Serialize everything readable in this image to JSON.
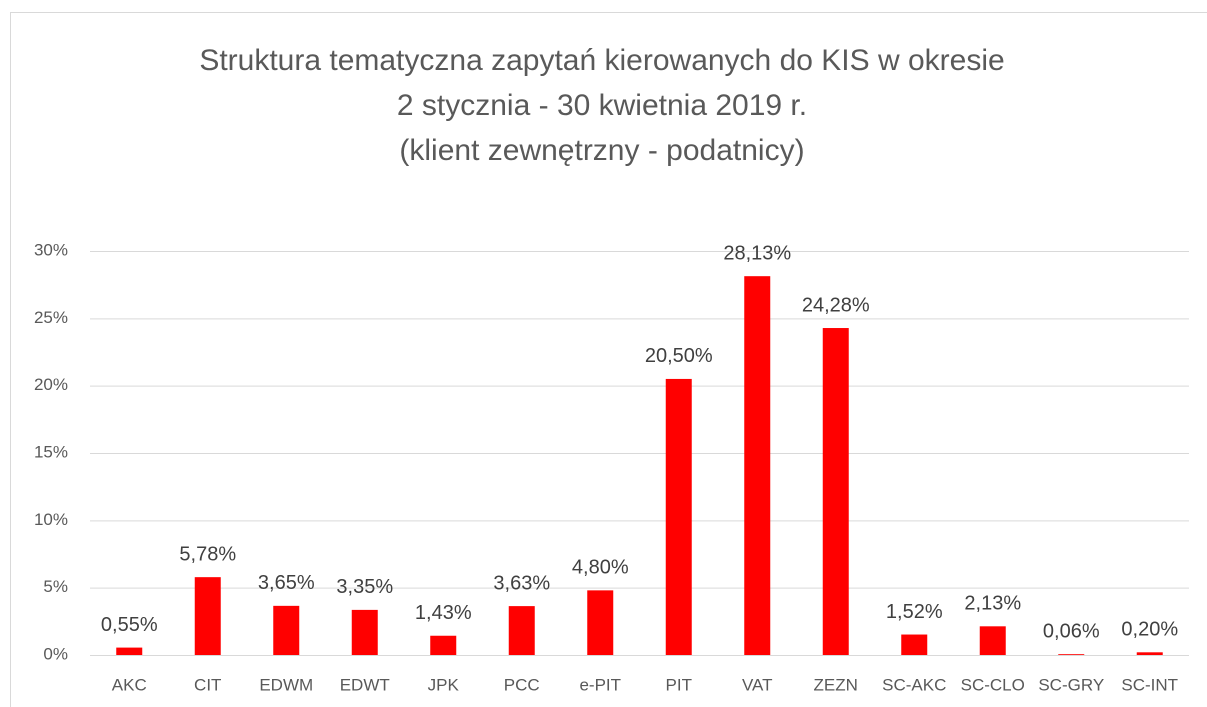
{
  "chart_data": {
    "type": "bar",
    "title": [
      "Struktura tematyczna zapytań kierowanych do KIS w okresie",
      "2 stycznia  - 30 kwietnia 2019 r.",
      "(klient zewnętrzny - podatnicy)"
    ],
    "categories": [
      "AKC",
      "CIT",
      "EDWM",
      "EDWT",
      "JPK",
      "PCC",
      "e-PIT",
      "PIT",
      "VAT",
      "ZEZN",
      "SC-AKC",
      "SC-CLO",
      "SC-GRY",
      "SC-INT"
    ],
    "values": [
      0.55,
      5.78,
      3.65,
      3.35,
      1.43,
      3.63,
      4.8,
      20.5,
      28.13,
      24.28,
      1.52,
      2.13,
      0.06,
      0.2
    ],
    "value_labels": [
      "0,55%",
      "5,78%",
      "3,65%",
      "3,35%",
      "1,43%",
      "3,63%",
      "4,80%",
      "20,50%",
      "28,13%",
      "24,28%",
      "1,52%",
      "2,13%",
      "0,06%",
      "0,20%"
    ],
    "color": "#ff0000",
    "ylim": [
      0,
      30
    ],
    "yticks": [
      {
        "value": 0,
        "label": "0%"
      },
      {
        "value": 5,
        "label": "5%"
      },
      {
        "value": 10,
        "label": "10%"
      },
      {
        "value": 15,
        "label": "15%"
      },
      {
        "value": 20,
        "label": "20%"
      },
      {
        "value": 25,
        "label": "25%"
      },
      {
        "value": 30,
        "label": "30%"
      }
    ],
    "grid": true
  }
}
